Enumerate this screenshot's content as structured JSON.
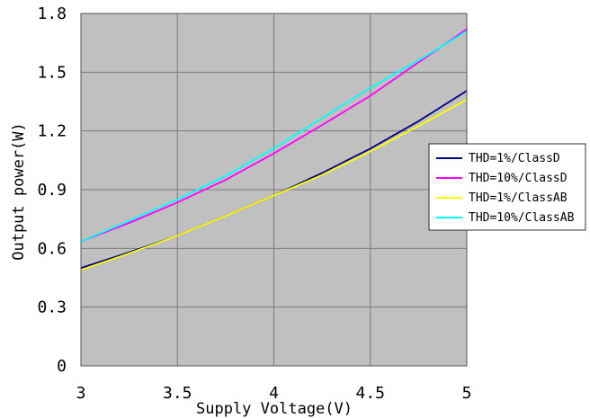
{
  "chart_data": {
    "type": "line",
    "title": "",
    "xlabel": "Supply Voltage(V)",
    "ylabel": "Output power(W)",
    "xlim": [
      3,
      5
    ],
    "ylim": [
      0,
      1.8
    ],
    "x_ticks": [
      "3",
      "3.5",
      "4",
      "4.5",
      "5"
    ],
    "y_ticks": [
      "0",
      "0.3",
      "0.6",
      "0.9",
      "1.2",
      "1.5",
      "1.8"
    ],
    "grid": true,
    "plot_background": "#c0c0c0",
    "legend_position": "right",
    "series": [
      {
        "name": "THD=1%/ClassD",
        "color": "#000080",
        "x": [
          3,
          3.25,
          3.5,
          3.75,
          4,
          4.25,
          4.5,
          4.75,
          5
        ],
        "y": [
          0.5,
          0.58,
          0.665,
          0.765,
          0.87,
          0.985,
          1.11,
          1.25,
          1.405
        ]
      },
      {
        "name": "THD=10%/ClassD",
        "color": "#ff00ff",
        "x": [
          3,
          3.25,
          3.5,
          3.75,
          4,
          4.25,
          4.5,
          4.75,
          5
        ],
        "y": [
          0.635,
          0.73,
          0.835,
          0.95,
          1.085,
          1.23,
          1.38,
          1.55,
          1.72
        ]
      },
      {
        "name": "THD=1%/ClassAB",
        "color": "#ffff00",
        "x": [
          3,
          3.25,
          3.5,
          3.75,
          4,
          4.25,
          4.5,
          4.75,
          5
        ],
        "y": [
          0.49,
          0.575,
          0.665,
          0.765,
          0.87,
          0.975,
          1.095,
          1.225,
          1.36
        ]
      },
      {
        "name": "THD=10%/ClassAB",
        "color": "#00ffff",
        "x": [
          3,
          3.25,
          3.5,
          3.75,
          4,
          4.25,
          4.5,
          4.75,
          5
        ],
        "y": [
          0.635,
          0.74,
          0.85,
          0.97,
          1.11,
          1.265,
          1.42,
          1.56,
          1.71
        ]
      }
    ]
  }
}
